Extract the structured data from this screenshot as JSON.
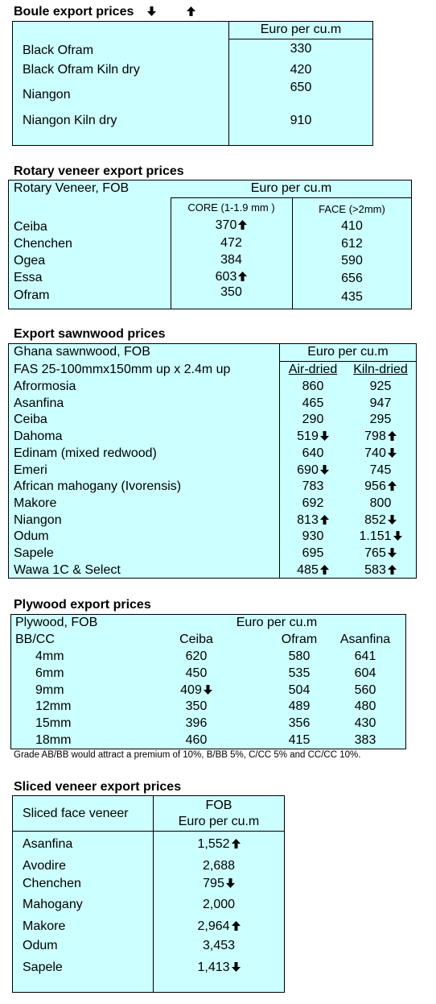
{
  "boule": {
    "title": "Boule export prices",
    "header_arrows": [
      "down",
      "up"
    ],
    "header": "Euro per cu.m",
    "rows": [
      {
        "name": "Black Ofram",
        "value": "330"
      },
      {
        "name": "Black Ofram  Kiln dry",
        "value": "420"
      },
      {
        "name": "Niangon",
        "value": "650"
      },
      {
        "name": "Niangon Kiln dry",
        "value": "910"
      }
    ]
  },
  "rotary": {
    "title": "Rotary veneer export prices",
    "label": "Rotary Veneer,  FOB",
    "header": "Euro  per cu.m",
    "col_core": "CORE (1-1.9 mm )",
    "col_face": "FACE (>2mm)",
    "rows": [
      {
        "name": "Ceiba",
        "core": "370",
        "core_arrow": "up",
        "face": "410"
      },
      {
        "name": "Chenchen",
        "core": "472",
        "face": "612"
      },
      {
        "name": "Ogea",
        "core": "384",
        "face": "590"
      },
      {
        "name": "Essa",
        "core": "603",
        "core_arrow": "up",
        "face": "656"
      },
      {
        "name": "Ofram",
        "core": "350",
        "face": "435"
      }
    ]
  },
  "sawnwood": {
    "title": "Export sawnwood prices",
    "label": "Ghana sawnwood, FOB",
    "sublabel": "FAS 25-100mmx150mm up x 2.4m up",
    "header": "Euro per cu.m",
    "col_air": "Air-dried",
    "col_kiln": "Kiln-dried",
    "rows": [
      {
        "name": "Afrormosia",
        "air": "860",
        "kiln": "925"
      },
      {
        "name": "Asanfina",
        "air": "465",
        "kiln": "947"
      },
      {
        "name": "Ceiba",
        "air": "290",
        "kiln": "295"
      },
      {
        "name": "Dahoma",
        "air": "519",
        "air_arrow": "down",
        "kiln": "798",
        "kiln_arrow": "up"
      },
      {
        "name": "Edinam (mixed redwood)",
        "air": "640",
        "kiln": "740",
        "kiln_arrow": "down"
      },
      {
        "name": "Emeri",
        "air": "690",
        "air_arrow": "down",
        "kiln": "745"
      },
      {
        "name": "African mahogany (Ivorensis)",
        "air": "783",
        "kiln": "956",
        "kiln_arrow": "up"
      },
      {
        "name": "Makore",
        "air": "692",
        "kiln": "800"
      },
      {
        "name": "Niangon",
        "air": "813",
        "air_arrow": "up",
        "kiln": "852",
        "kiln_arrow": "down"
      },
      {
        "name": "Odum",
        "air": "930",
        "kiln": "1.151",
        "kiln_arrow": "down"
      },
      {
        "name": "Sapele",
        "air": "695",
        "kiln": "765",
        "kiln_arrow": "down"
      },
      {
        "name": "Wawa 1C & Select",
        "air": "485",
        "air_arrow": "up",
        "kiln": "583",
        "kiln_arrow": "up"
      }
    ]
  },
  "plywood": {
    "title": "Plywood export prices",
    "label": "Plywood, FOB",
    "header": "Euro per cu.m",
    "grade": "BB/CC",
    "cols": [
      "Ceiba",
      "Ofram",
      "Asanfina"
    ],
    "rows": [
      {
        "size": "4mm",
        "ceiba": "620",
        "ofram": "580",
        "asanfina": "641"
      },
      {
        "size": "6mm",
        "ceiba": "450",
        "ofram": "535",
        "asanfina": "604"
      },
      {
        "size": "9mm",
        "ceiba": "409",
        "ceiba_arrow": "down",
        "ofram": "504",
        "asanfina": "560"
      },
      {
        "size": "12mm",
        "ceiba": "350",
        "ofram": "489",
        "asanfina": "480"
      },
      {
        "size": "15mm",
        "ceiba": "396",
        "ofram": "356",
        "asanfina": "430"
      },
      {
        "size": "18mm",
        "ceiba": "460",
        "ofram": "415",
        "asanfina": "383"
      }
    ],
    "note": "Grade AB/BB would attract a premium of 10%, B/BB 5%, C/CC 5% and CC/CC 10%."
  },
  "sliced": {
    "title": "Sliced veneer export prices",
    "label": "Sliced face veneer",
    "header_line1": "FOB",
    "header_line2": "Euro per cu.m",
    "rows": [
      {
        "name": "Asanfina",
        "value": "1,552",
        "arrow": "up"
      },
      {
        "name": "Avodire",
        "value": "2,688"
      },
      {
        "name": "Chenchen",
        "value": "795",
        "arrow": "down"
      },
      {
        "name": "Mahogany",
        "value": "2,000"
      },
      {
        "name": "Makore",
        "value": "2,964",
        "arrow": "up"
      },
      {
        "name": "Odum",
        "value": "3,453"
      },
      {
        "name": "Sapele",
        "value": "1,413",
        "arrow": "down"
      }
    ]
  },
  "colors": {
    "table_bg": "#ccffff",
    "border": "#000000",
    "text": "#000000"
  }
}
